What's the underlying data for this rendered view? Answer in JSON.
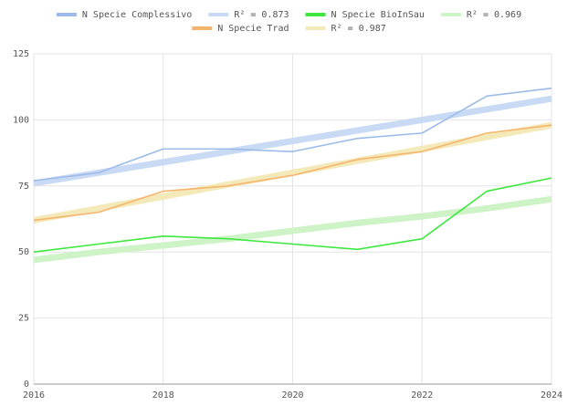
{
  "chart_data": {
    "type": "line",
    "x": [
      2016,
      2017,
      2018,
      2019,
      2020,
      2021,
      2022,
      2023,
      2024
    ],
    "series": [
      {
        "name": "N Specie Complessivo",
        "color": "#9dbbe8",
        "values": [
          77,
          80,
          89,
          89,
          88,
          93,
          95,
          109,
          112
        ]
      },
      {
        "name": "R² = 0.873",
        "color": "#c9daf5",
        "trend": true,
        "values": [
          76,
          80,
          84,
          88,
          92,
          96,
          100,
          104,
          108
        ]
      },
      {
        "name": "N Specie BioInSau",
        "color": "#3ee83e",
        "values": [
          50,
          53,
          56,
          55,
          53,
          51,
          55,
          73,
          78
        ]
      },
      {
        "name": "R² = 0.969",
        "color": "#cdf3c6",
        "trend": true,
        "values": [
          47,
          50,
          52.5,
          55,
          58,
          61,
          63.5,
          66.5,
          70
        ]
      },
      {
        "name": "N Specie Trad",
        "color": "#f6b56e",
        "values": [
          62,
          65,
          73,
          75,
          79,
          85,
          88,
          95,
          98
        ]
      },
      {
        "name": "R² = 0.987",
        "color": "#f4e9b8",
        "trend": true,
        "values": [
          62,
          66.5,
          71,
          75.5,
          80,
          84.5,
          89,
          93.5,
          98
        ]
      }
    ],
    "xlim": [
      2016,
      2024
    ],
    "xticks": [
      2016,
      2018,
      2020,
      2022,
      2024
    ],
    "ylim": [
      0,
      125
    ],
    "yticks": [
      0,
      25,
      50,
      75,
      100,
      125
    ],
    "grid": true
  }
}
